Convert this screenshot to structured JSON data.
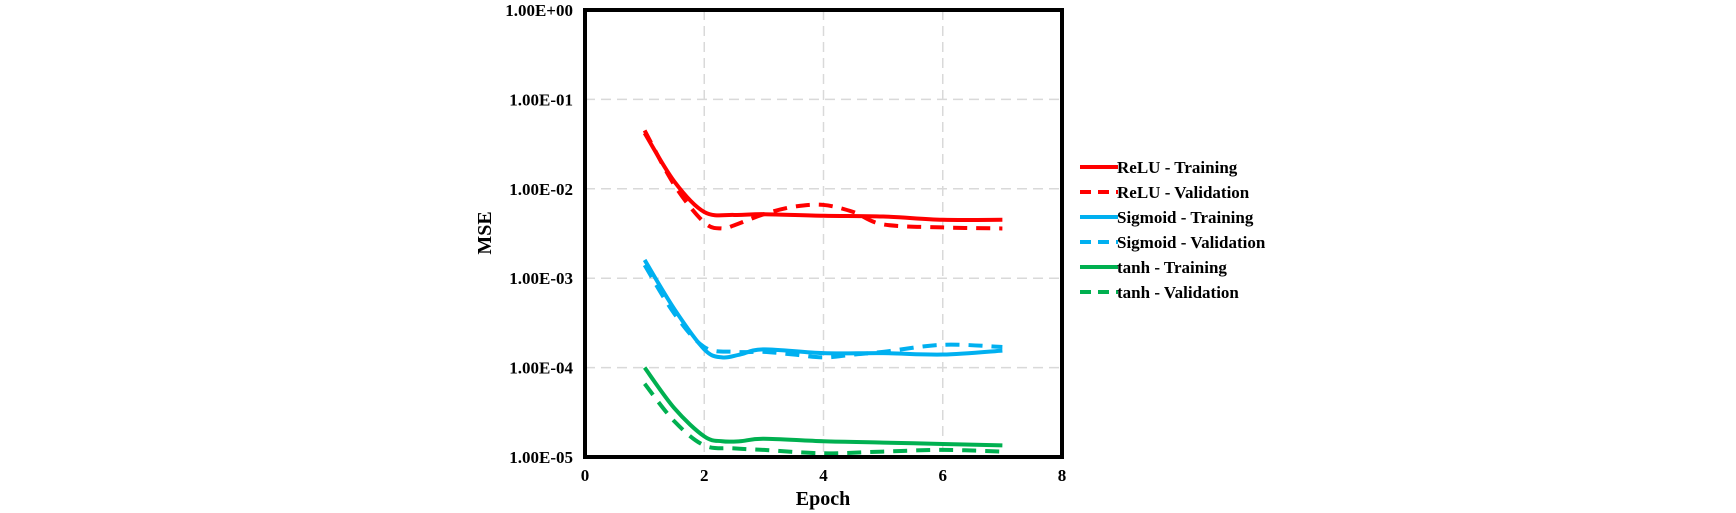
{
  "chart_data": {
    "type": "line",
    "xlabel": "Epoch",
    "ylabel": "MSE",
    "xlim": [
      0,
      8
    ],
    "ylim": [
      1e-05,
      1
    ],
    "yscale": "log",
    "grid": true,
    "legend_position": "right",
    "x_ticks": [
      "0",
      "2",
      "4",
      "6",
      "8"
    ],
    "y_ticks": [
      "1.00E-05",
      "1.00E-04",
      "1.00E-03",
      "1.00E-02",
      "1.00E-01",
      "1.00E+00"
    ],
    "x_tick_values": [
      0,
      2,
      4,
      6,
      8
    ],
    "y_tick_values": [
      1e-05,
      0.0001,
      0.001,
      0.01,
      0.1,
      1
    ],
    "series": [
      {
        "name": "ReLU - Training",
        "color": "#ff0000",
        "dash": "solid",
        "x": [
          1,
          1.5,
          2,
          2.5,
          3,
          4,
          5,
          6,
          7
        ],
        "y": [
          0.042,
          0.012,
          0.0055,
          0.0051,
          0.0052,
          0.005,
          0.0049,
          0.0045,
          0.0045
        ]
      },
      {
        "name": "ReLU - Validation",
        "color": "#ff0000",
        "dash": "dashed",
        "x": [
          1,
          1.5,
          2,
          2.3,
          2.5,
          3,
          3.5,
          4,
          4.5,
          5,
          6,
          7
        ],
        "y": [
          0.045,
          0.011,
          0.0042,
          0.0036,
          0.0039,
          0.0052,
          0.0063,
          0.0066,
          0.0055,
          0.004,
          0.0037,
          0.0036
        ]
      },
      {
        "name": "Sigmoid - Training",
        "color": "#00b0f0",
        "dash": "solid",
        "x": [
          1,
          1.5,
          2,
          2.3,
          2.6,
          3,
          4,
          5,
          6,
          7
        ],
        "y": [
          0.0016,
          0.00045,
          0.00016,
          0.00013,
          0.00014,
          0.00016,
          0.000145,
          0.000145,
          0.00014,
          0.000155
        ]
      },
      {
        "name": "Sigmoid - Validation",
        "color": "#00b0f0",
        "dash": "dashed",
        "x": [
          1,
          1.5,
          2,
          2.5,
          3,
          3.5,
          4,
          4.5,
          5,
          6,
          7
        ],
        "y": [
          0.0014,
          0.0004,
          0.00017,
          0.00015,
          0.00015,
          0.00014,
          0.00013,
          0.00014,
          0.00015,
          0.00018,
          0.00017
        ]
      },
      {
        "name": "tanh - Training",
        "color": "#00b050",
        "dash": "solid",
        "x": [
          1,
          1.5,
          2,
          2.3,
          2.6,
          3,
          4,
          5,
          6,
          7
        ],
        "y": [
          0.0001,
          3.5e-05,
          1.7e-05,
          1.5e-05,
          1.5e-05,
          1.6e-05,
          1.5e-05,
          1.45e-05,
          1.4e-05,
          1.35e-05
        ]
      },
      {
        "name": "tanh - Validation",
        "color": "#00b050",
        "dash": "dashed",
        "x": [
          1,
          1.5,
          2,
          2.5,
          3,
          4,
          5,
          6,
          7
        ],
        "y": [
          6.6e-05,
          2.5e-05,
          1.35e-05,
          1.25e-05,
          1.2e-05,
          1.1e-05,
          1.15e-05,
          1.2e-05,
          1.15e-05
        ]
      }
    ]
  }
}
